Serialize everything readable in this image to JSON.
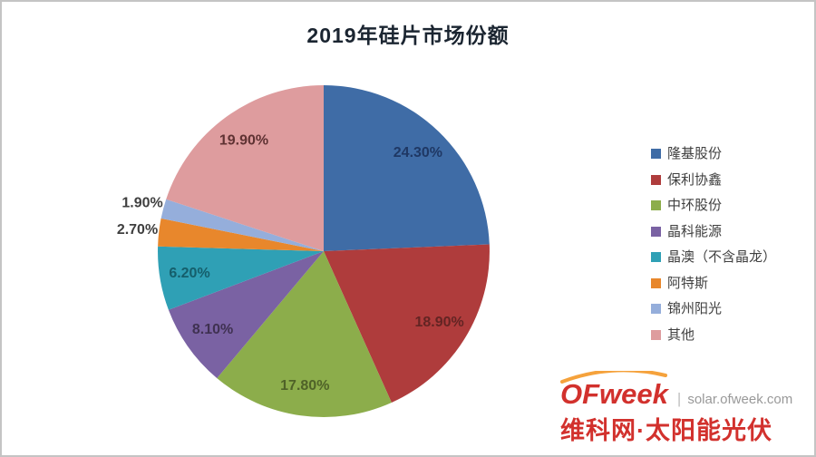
{
  "chart_data": {
    "type": "pie",
    "title": "2019年硅片市场份额",
    "legend_position": "right",
    "label_format": "percent",
    "slices": [
      {
        "name": "隆基股份",
        "value": 24.3,
        "display": "24.30%",
        "color": "#3F6CA6",
        "label_color": "#1F3864",
        "label_placement": "inside"
      },
      {
        "name": "保利协鑫",
        "value": 18.9,
        "display": "18.90%",
        "color": "#AF3C3C",
        "label_color": "#632423",
        "label_placement": "inside"
      },
      {
        "name": "中环股份",
        "value": 17.8,
        "display": "17.80%",
        "color": "#8CAD4B",
        "label_color": "#4F6228",
        "label_placement": "inside"
      },
      {
        "name": "晶科能源",
        "value": 8.1,
        "display": "8.10%",
        "color": "#7A62A3",
        "label_color": "#3F3151",
        "label_placement": "inside"
      },
      {
        "name": "晶澳（不含晶龙）",
        "value": 6.2,
        "display": "6.20%",
        "color": "#2FA0B5",
        "label_color": "#155E6B",
        "label_placement": "inside"
      },
      {
        "name": "阿特斯",
        "value": 2.7,
        "display": "2.70%",
        "color": "#E8872C",
        "label_color": "#3F3F3F",
        "label_placement": "outside"
      },
      {
        "name": "锦州阳光",
        "value": 1.9,
        "display": "1.90%",
        "color": "#95AEDB",
        "label_color": "#3F3F3F",
        "label_placement": "outside"
      },
      {
        "name": "其他",
        "value": 19.9,
        "display": "19.90%",
        "color": "#DE9C9E",
        "label_color": "#5F3233",
        "label_placement": "inside"
      }
    ]
  },
  "footer": {
    "brand": "OFweek",
    "separator": "|",
    "site": "solar.ofweek.com",
    "tagline": "维科网·太阳能光伏",
    "brand_color": "#D2312D",
    "site_color": "#999999",
    "arc_color": "#F5A23C"
  }
}
